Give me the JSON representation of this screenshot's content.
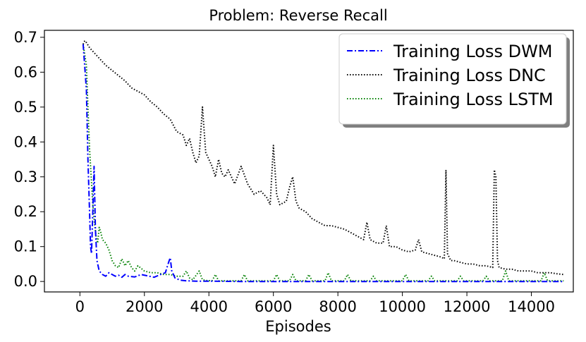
{
  "chart_data": {
    "type": "line",
    "title": "Problem: Reverse Recall",
    "xlabel": "Episodes",
    "ylabel": "",
    "xlim": [
      -1100,
      15300
    ],
    "ylim": [
      -0.03,
      0.72
    ],
    "xticks": [
      0,
      2000,
      4000,
      6000,
      8000,
      10000,
      12000,
      14000
    ],
    "xtick_labels": [
      "0",
      "2000",
      "4000",
      "6000",
      "8000",
      "10000",
      "12000",
      "14000"
    ],
    "yticks": [
      0.0,
      0.1,
      0.2,
      0.3,
      0.4,
      0.5,
      0.6,
      0.7
    ],
    "ytick_labels": [
      "0.0",
      "0.1",
      "0.2",
      "0.3",
      "0.4",
      "0.5",
      "0.6",
      "0.7"
    ],
    "legend_position": "top-right",
    "series": [
      {
        "name": "Training Loss DWM",
        "color": "#0000ff",
        "style": "dashdot",
        "x": [
          100,
          200,
          250,
          300,
          330,
          360,
          400,
          440,
          480,
          530,
          600,
          700,
          800,
          900,
          1000,
          1100,
          1200,
          1300,
          1400,
          1500,
          1700,
          1900,
          2100,
          2300,
          2500,
          2650,
          2750,
          2800,
          2850,
          2950,
          3100,
          3300,
          3600,
          4000,
          5000,
          6000,
          7000,
          8000,
          9000,
          10000,
          11000,
          12000,
          13000,
          14000,
          15000
        ],
        "y": [
          0.68,
          0.55,
          0.35,
          0.2,
          0.1,
          0.08,
          0.2,
          0.33,
          0.15,
          0.06,
          0.03,
          0.02,
          0.015,
          0.025,
          0.02,
          0.015,
          0.018,
          0.012,
          0.02,
          0.015,
          0.013,
          0.02,
          0.016,
          0.012,
          0.02,
          0.025,
          0.055,
          0.068,
          0.03,
          0.01,
          0.004,
          0.002,
          0.001,
          0.001,
          0.0,
          0.0,
          0.0,
          0.0,
          0.0,
          0.0,
          0.0,
          0.0,
          0.0,
          0.0,
          0.0
        ]
      },
      {
        "name": "Training Loss DNC",
        "color": "#000000",
        "style": "dotted",
        "x": [
          100,
          150,
          200,
          300,
          400,
          600,
          800,
          1000,
          1200,
          1400,
          1600,
          1800,
          2000,
          2200,
          2400,
          2600,
          2800,
          3000,
          3200,
          3300,
          3400,
          3500,
          3600,
          3700,
          3800,
          3900,
          4000,
          4100,
          4200,
          4300,
          4400,
          4500,
          4600,
          4700,
          4800,
          5000,
          5200,
          5400,
          5600,
          5800,
          5900,
          6000,
          6100,
          6200,
          6400,
          6500,
          6600,
          6700,
          6800,
          7000,
          7200,
          7400,
          7600,
          7800,
          8000,
          8200,
          8400,
          8600,
          8800,
          8900,
          9000,
          9200,
          9400,
          9500,
          9600,
          9800,
          10000,
          10200,
          10400,
          10500,
          10600,
          10800,
          11000,
          11200,
          11300,
          11350,
          11400,
          11500,
          11600,
          11800,
          12000,
          12200,
          12400,
          12600,
          12800,
          12850,
          12900,
          12950,
          13000,
          13200,
          13400,
          13600,
          13800,
          14000,
          14200,
          14400,
          14600,
          14800,
          15000
        ],
        "y": [
          0.68,
          0.69,
          0.685,
          0.67,
          0.66,
          0.64,
          0.62,
          0.605,
          0.59,
          0.575,
          0.555,
          0.545,
          0.535,
          0.515,
          0.5,
          0.48,
          0.465,
          0.43,
          0.42,
          0.39,
          0.41,
          0.37,
          0.34,
          0.36,
          0.5,
          0.37,
          0.35,
          0.33,
          0.3,
          0.35,
          0.31,
          0.3,
          0.32,
          0.3,
          0.28,
          0.33,
          0.28,
          0.25,
          0.26,
          0.24,
          0.22,
          0.39,
          0.25,
          0.22,
          0.23,
          0.27,
          0.3,
          0.23,
          0.21,
          0.2,
          0.18,
          0.17,
          0.16,
          0.16,
          0.155,
          0.15,
          0.14,
          0.13,
          0.12,
          0.17,
          0.12,
          0.11,
          0.11,
          0.16,
          0.1,
          0.1,
          0.09,
          0.085,
          0.09,
          0.12,
          0.085,
          0.08,
          0.075,
          0.07,
          0.065,
          0.32,
          0.08,
          0.06,
          0.06,
          0.055,
          0.05,
          0.05,
          0.045,
          0.045,
          0.04,
          0.32,
          0.3,
          0.06,
          0.04,
          0.035,
          0.035,
          0.03,
          0.03,
          0.03,
          0.025,
          0.025,
          0.025,
          0.022,
          0.02
        ]
      },
      {
        "name": "Training Loss LSTM",
        "color": "#008000",
        "style": "dotted",
        "x": [
          100,
          200,
          250,
          300,
          350,
          400,
          450,
          500,
          550,
          600,
          650,
          700,
          800,
          900,
          1000,
          1100,
          1200,
          1300,
          1400,
          1500,
          1600,
          1700,
          1800,
          2000,
          2200,
          2400,
          2600,
          2800,
          3000,
          3200,
          3300,
          3400,
          3500,
          3700,
          3800,
          3900,
          4100,
          4200,
          4300,
          5000,
          5100,
          5200,
          6000,
          6100,
          6200,
          6500,
          6600,
          6700,
          7000,
          7100,
          7200,
          7600,
          7700,
          7800,
          8200,
          8300,
          8400,
          9000,
          9100,
          9200,
          10000,
          10100,
          10200,
          10800,
          10900,
          11000,
          11700,
          11800,
          11900,
          12500,
          12600,
          12700,
          13100,
          13200,
          13300,
          14300,
          14400,
          14500,
          15000
        ],
        "y": [
          0.68,
          0.62,
          0.5,
          0.38,
          0.3,
          0.22,
          0.17,
          0.13,
          0.11,
          0.155,
          0.14,
          0.12,
          0.11,
          0.09,
          0.06,
          0.045,
          0.04,
          0.065,
          0.045,
          0.06,
          0.04,
          0.03,
          0.045,
          0.03,
          0.025,
          0.025,
          0.02,
          0.02,
          0.015,
          0.015,
          0.03,
          0.01,
          0.005,
          0.03,
          0.005,
          0.003,
          0.002,
          0.02,
          0.002,
          0.002,
          0.02,
          0.002,
          0.002,
          0.02,
          0.002,
          0.002,
          0.02,
          0.002,
          0.002,
          0.02,
          0.002,
          0.002,
          0.025,
          0.002,
          0.002,
          0.02,
          0.002,
          0.002,
          0.015,
          0.002,
          0.002,
          0.02,
          0.002,
          0.002,
          0.015,
          0.002,
          0.002,
          0.015,
          0.002,
          0.002,
          0.015,
          0.002,
          0.002,
          0.03,
          0.002,
          0.002,
          0.025,
          0.002,
          0.002
        ]
      }
    ]
  }
}
